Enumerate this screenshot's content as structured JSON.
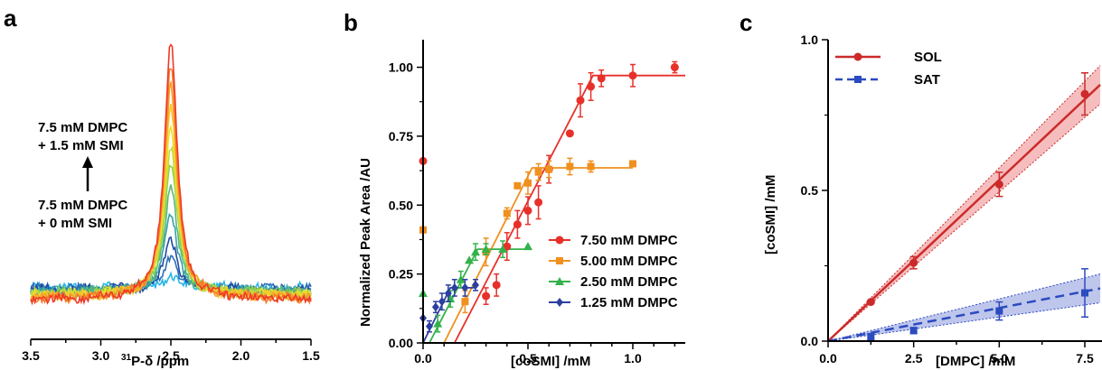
{
  "panels": {
    "a": {
      "letter": "a",
      "annotation_top": [
        "7.5 mM  DMPC",
        "+ 1.5 mM SMI"
      ],
      "annotation_bottom": [
        "7.5 mM  DMPC",
        "+ 0 mM SMI"
      ],
      "xlabel_super": "31",
      "xlabel_main": "P-δ /ppm"
    },
    "b": {
      "letter": "b"
    },
    "c": {
      "letter": "c"
    }
  },
  "chart_data": [
    {
      "panel": "a",
      "type": "line",
      "title": "",
      "xlabel": "31P-δ /ppm",
      "ylabel": "",
      "xlim": [
        3.5,
        1.5
      ],
      "x_reversed": true,
      "xticks": [
        "3.5",
        "3.0",
        "2.5",
        "2.0",
        "1.5"
      ],
      "peak_center_ppm": 2.5,
      "series": [
        {
          "color": "#29b6e8",
          "peak": 0.05
        },
        {
          "color": "#2e6fb5",
          "peak": 0.13
        },
        {
          "color": "#1f4aa0",
          "peak": 0.2
        },
        {
          "color": "#3aa0a8",
          "peak": 0.3
        },
        {
          "color": "#58b879",
          "peak": 0.4
        },
        {
          "color": "#8ccf4e",
          "peak": 0.5
        },
        {
          "color": "#c6dc38",
          "peak": 0.58
        },
        {
          "color": "#e9e02e",
          "peak": 0.66
        },
        {
          "color": "#f6c52a",
          "peak": 0.74
        },
        {
          "color": "#f7a02b",
          "peak": 0.82
        },
        {
          "color": "#f47a2a",
          "peak": 0.9
        },
        {
          "color": "#ef3a26",
          "peak": 1.0
        }
      ]
    },
    {
      "panel": "b",
      "type": "scatter",
      "title": "",
      "xlabel": "[coSMI] /mM",
      "ylabel": "Normalized Peak Area /AU",
      "xlim": [
        0,
        1.25
      ],
      "ylim": [
        0,
        1.1
      ],
      "xticks": [
        "0.0",
        "0.5",
        "1.0"
      ],
      "yticks": [
        "0.00",
        "0.25",
        "0.50",
        "0.75",
        "1.00"
      ],
      "legend_position": "bottom-right",
      "series": [
        {
          "name": "7.50 mM DMPC",
          "color": "#e8302a",
          "marker": "circle",
          "points": [
            [
              0.0,
              0.66,
              0
            ],
            [
              0.3,
              0.17,
              0.03
            ],
            [
              0.35,
              0.21,
              0.04
            ],
            [
              0.4,
              0.35,
              0.05
            ],
            [
              0.45,
              0.43,
              0.05
            ],
            [
              0.5,
              0.48,
              0.05
            ],
            [
              0.55,
              0.51,
              0.06
            ],
            [
              0.6,
              0.63,
              0.05
            ],
            [
              0.7,
              0.76,
              0.0
            ],
            [
              0.75,
              0.88,
              0.06
            ],
            [
              0.8,
              0.93,
              0.05
            ],
            [
              0.85,
              0.96,
              0.03
            ],
            [
              1.0,
              0.97,
              0.04
            ],
            [
              1.2,
              1.0,
              0.02
            ]
          ],
          "fit": [
            [
              0.15,
              0.0
            ],
            [
              0.81,
              0.97
            ],
            [
              1.25,
              0.97
            ]
          ]
        },
        {
          "name": "5.00 mM DMPC",
          "color": "#f0901e",
          "marker": "square",
          "points": [
            [
              0.0,
              0.41,
              0
            ],
            [
              0.2,
              0.15,
              0.04
            ],
            [
              0.3,
              0.33,
              0.05
            ],
            [
              0.4,
              0.47,
              0.02
            ],
            [
              0.45,
              0.57,
              0.0
            ],
            [
              0.5,
              0.58,
              0.04
            ],
            [
              0.55,
              0.62,
              0.03
            ],
            [
              0.6,
              0.63,
              0.03
            ],
            [
              0.7,
              0.64,
              0.03
            ],
            [
              0.8,
              0.64,
              0.02
            ],
            [
              1.0,
              0.65,
              0.0
            ]
          ],
          "fit": [
            [
              0.1,
              0.0
            ],
            [
              0.52,
              0.635
            ],
            [
              1.0,
              0.635
            ]
          ]
        },
        {
          "name": "2.50 mM DMPC",
          "color": "#33b24a",
          "marker": "triangle",
          "points": [
            [
              0.0,
              0.18,
              0
            ],
            [
              0.07,
              0.07,
              0.03
            ],
            [
              0.13,
              0.16,
              0.03
            ],
            [
              0.18,
              0.23,
              0.03
            ],
            [
              0.22,
              0.3,
              0.0
            ],
            [
              0.25,
              0.33,
              0.03
            ],
            [
              0.3,
              0.34,
              0.02
            ],
            [
              0.38,
              0.34,
              0.03
            ],
            [
              0.5,
              0.35,
              0.0
            ]
          ],
          "fit": [
            [
              0.03,
              0.0
            ],
            [
              0.26,
              0.34
            ],
            [
              0.5,
              0.34
            ]
          ]
        },
        {
          "name": "1.25 mM DMPC",
          "color": "#2b3fa0",
          "marker": "diamond",
          "points": [
            [
              0.0,
              0.09,
              0
            ],
            [
              0.03,
              0.06,
              0.02
            ],
            [
              0.06,
              0.13,
              0.02
            ],
            [
              0.09,
              0.15,
              0.03
            ],
            [
              0.12,
              0.18,
              0.03
            ],
            [
              0.15,
              0.2,
              0.03
            ],
            [
              0.2,
              0.2,
              0.03
            ],
            [
              0.25,
              0.21,
              0.02
            ]
          ],
          "fit": [
            [
              0.0,
              0.0
            ],
            [
              0.13,
              0.2
            ],
            [
              0.25,
              0.2
            ]
          ]
        }
      ]
    },
    {
      "panel": "c",
      "type": "scatter",
      "title": "",
      "xlabel": "[DMPC] /mM",
      "ylabel": "[coSMI] /mM",
      "xlim": [
        0,
        7.5
      ],
      "ylim": [
        0,
        1.0
      ],
      "xticks": [
        "0.0",
        "2.5",
        "5.0",
        "7.5"
      ],
      "yticks": [
        "0.0",
        "0.5",
        "1.0"
      ],
      "legend_position": "top-left",
      "series": [
        {
          "name": "SOL",
          "color": "#cc2a2a",
          "band_color": "#f2a7a7",
          "marker": "circle",
          "line": "solid",
          "points": [
            [
              1.25,
              0.13,
              0.0
            ],
            [
              2.5,
              0.26,
              0.02
            ],
            [
              5.0,
              0.52,
              0.04
            ],
            [
              7.5,
              0.82,
              0.07
            ]
          ],
          "slope": 0.107,
          "band": 0.008
        },
        {
          "name": "SAT",
          "color": "#2b4bbf",
          "band_color": "#aab3e6",
          "marker": "square",
          "line": "dashed",
          "points": [
            [
              1.25,
              0.015,
              0.01
            ],
            [
              2.5,
              0.035,
              0.01
            ],
            [
              5.0,
              0.1,
              0.03
            ],
            [
              7.5,
              0.16,
              0.08
            ]
          ],
          "slope": 0.022,
          "band": 0.006
        }
      ]
    }
  ]
}
